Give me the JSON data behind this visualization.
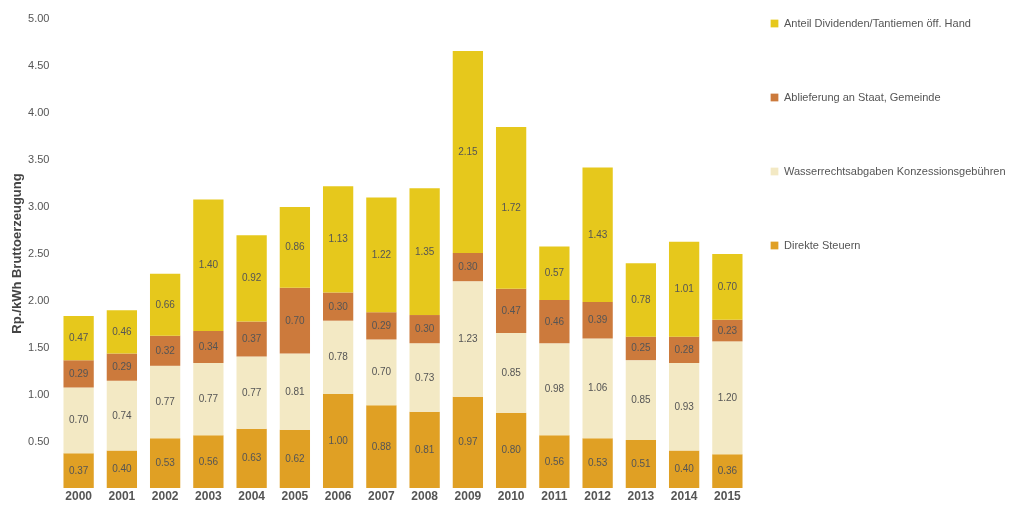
{
  "chart_data": {
    "type": "bar",
    "stacked": true,
    "ylabel": "Rp./kWh Bruttoerzeugung",
    "categories": [
      "2000",
      "2001",
      "2002",
      "2003",
      "2004",
      "2005",
      "2006",
      "2007",
      "2008",
      "2009",
      "2010",
      "2011",
      "2012",
      "2013",
      "2014",
      "2015"
    ],
    "series": [
      {
        "name": "Direkte Steuern",
        "color": "#e0a024",
        "values": [
          0.37,
          0.4,
          0.53,
          0.56,
          0.63,
          0.62,
          1.0,
          0.88,
          0.81,
          0.97,
          0.8,
          0.56,
          0.53,
          0.51,
          0.4,
          0.36
        ],
        "value_labels": [
          "0.37",
          "0.40",
          "0.53",
          "0.56",
          "0.63",
          "0.62",
          "1.00",
          "0.88",
          "0.81",
          "0.97",
          "0.80",
          "0.56",
          "0.53",
          "0.51",
          "0.40",
          "0.36"
        ]
      },
      {
        "name": "Wasserrechtsabgaben Konzessionsgebühren",
        "color": "#f3e9c4",
        "values": [
          0.7,
          0.74,
          0.77,
          0.77,
          0.77,
          0.81,
          0.78,
          0.7,
          0.73,
          1.23,
          0.85,
          0.98,
          1.06,
          0.85,
          0.93,
          1.2
        ],
        "value_labels": [
          "0.70",
          "0.74",
          "0.77",
          "0.77",
          "0.77",
          "0.81",
          "0.78",
          "0.70",
          "0.73",
          "1.23",
          "0.85",
          "0.98",
          "1.06",
          "0.85",
          "0.93",
          "1.20"
        ]
      },
      {
        "name": "Ablieferung an Staat, Gemeinde",
        "color": "#cc7a3c",
        "values": [
          0.29,
          0.29,
          0.32,
          0.34,
          0.37,
          0.7,
          0.3,
          0.29,
          0.3,
          0.3,
          0.47,
          0.46,
          0.39,
          0.25,
          0.28,
          0.23
        ],
        "value_labels": [
          "0.29",
          "0.29",
          "0.32",
          "0.34",
          "0.37",
          "0.70",
          "0.30",
          "0.29",
          "0.30",
          "0.30",
          "0.47",
          "0.46",
          "0.39",
          "0.25",
          "0.28",
          "0.23"
        ]
      },
      {
        "name": "Anteil Dividenden/Tantiemen öff. Hand",
        "color": "#e6c81c",
        "values": [
          0.47,
          0.46,
          0.66,
          1.4,
          0.92,
          0.86,
          1.13,
          1.22,
          1.35,
          2.15,
          1.72,
          0.57,
          1.43,
          0.78,
          1.01,
          0.7
        ],
        "value_labels": [
          "0.47",
          "0.46",
          "0.66",
          "1.40",
          "0.92",
          "0.86",
          "1.13",
          "1.22",
          "1.35",
          "2.15",
          "1.72",
          "0.57",
          "1.43",
          "0.78",
          "1.01",
          "0.70"
        ]
      }
    ],
    "ylim": [
      0,
      5
    ],
    "yticks": [
      {
        "value": 0.5,
        "label": "0.50"
      },
      {
        "value": 1,
        "label": "1.00"
      },
      {
        "value": 1.5,
        "label": "1.50"
      },
      {
        "value": 2,
        "label": "2.00"
      },
      {
        "value": 2.5,
        "label": "2.50"
      },
      {
        "value": 3,
        "label": "3.00"
      },
      {
        "value": 3.5,
        "label": "3.50"
      },
      {
        "value": 4,
        "label": "4.00"
      },
      {
        "value": 4.5,
        "label": "4.50"
      },
      {
        "value": 5,
        "label": "5.00"
      }
    ],
    "legend": "right",
    "grid": false
  }
}
